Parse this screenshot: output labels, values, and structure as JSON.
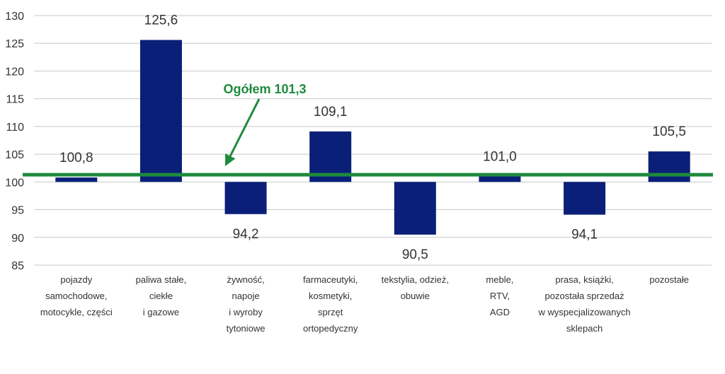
{
  "chart_data": {
    "type": "bar",
    "baseline": 100,
    "ylim": [
      85,
      130
    ],
    "yticks": [
      85,
      90,
      95,
      100,
      105,
      110,
      115,
      120,
      125,
      130
    ],
    "grid": true,
    "categories": [
      [
        "pojazdy",
        "samochodowe,",
        "motocykle,  części"
      ],
      [
        "paliwa stałe,",
        "ciekłe",
        "i gazowe"
      ],
      [
        "żywność,",
        "napoje",
        "i wyroby",
        "tytoniowe"
      ],
      [
        "farmaceutyki,",
        "kosmetyki,",
        "sprzęt",
        "ortopedyczny"
      ],
      [
        "tekstylia,  odzież,",
        "obuwie"
      ],
      [
        "meble,",
        "RTV,",
        "AGD"
      ],
      [
        "prasa, książki,",
        "pozostała sprzedaż",
        "w wyspecjalizowanych",
        "sklepach"
      ],
      [
        "pozostałe"
      ]
    ],
    "values": [
      100.8,
      125.6,
      94.2,
      109.1,
      90.5,
      101.0,
      94.1,
      105.5
    ],
    "value_labels": [
      "100,8",
      "125,6",
      "94,2",
      "109,1",
      "90,5",
      "101,0",
      "94,1",
      "105,5"
    ],
    "reference_line": {
      "value": 101.3,
      "label": "Ogółem 101,3"
    },
    "colors": {
      "bar": "#0a1f78",
      "reference": "#1e8a3c",
      "grid": "#c8c8c8",
      "axis": "#333333"
    }
  }
}
